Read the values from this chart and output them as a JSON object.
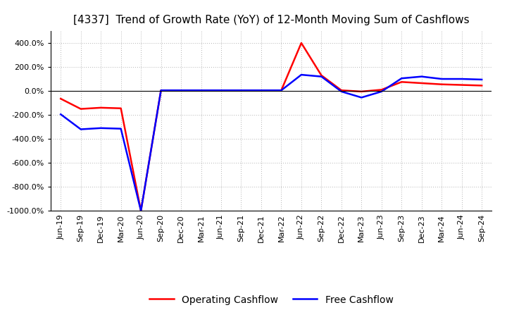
{
  "title": "[4337]  Trend of Growth Rate (YoY) of 12-Month Moving Sum of Cashflows",
  "x_labels": [
    "Jun-19",
    "Sep-19",
    "Dec-19",
    "Mar-20",
    "Jun-20",
    "Sep-20",
    "Dec-20",
    "Mar-21",
    "Jun-21",
    "Sep-21",
    "Dec-21",
    "Mar-22",
    "Jun-22",
    "Sep-22",
    "Dec-22",
    "Mar-23",
    "Jun-23",
    "Sep-23",
    "Dec-23",
    "Mar-24",
    "Jun-24",
    "Sep-24"
  ],
  "operating_cashflow": [
    -65,
    -150,
    -140,
    -145,
    -1000,
    5,
    5,
    5,
    5,
    5,
    5,
    5,
    400,
    130,
    5,
    -5,
    10,
    75,
    65,
    55,
    50,
    45
  ],
  "free_cashflow": [
    -195,
    -320,
    -310,
    -315,
    -1000,
    5,
    5,
    5,
    5,
    5,
    5,
    5,
    135,
    120,
    -5,
    -55,
    -5,
    105,
    120,
    100,
    100,
    95
  ],
  "ylim": [
    -1000,
    500
  ],
  "yticks": [
    -1000,
    -800,
    -600,
    -400,
    -200,
    0,
    200,
    400
  ],
  "operating_color": "#ff0000",
  "free_color": "#0000ff",
  "background_color": "#ffffff",
  "grid_color": "#aaaaaa",
  "legend_operating": "Operating Cashflow",
  "legend_free": "Free Cashflow",
  "title_fontsize": 11,
  "axis_fontsize": 8,
  "legend_fontsize": 10,
  "line_width": 1.8
}
